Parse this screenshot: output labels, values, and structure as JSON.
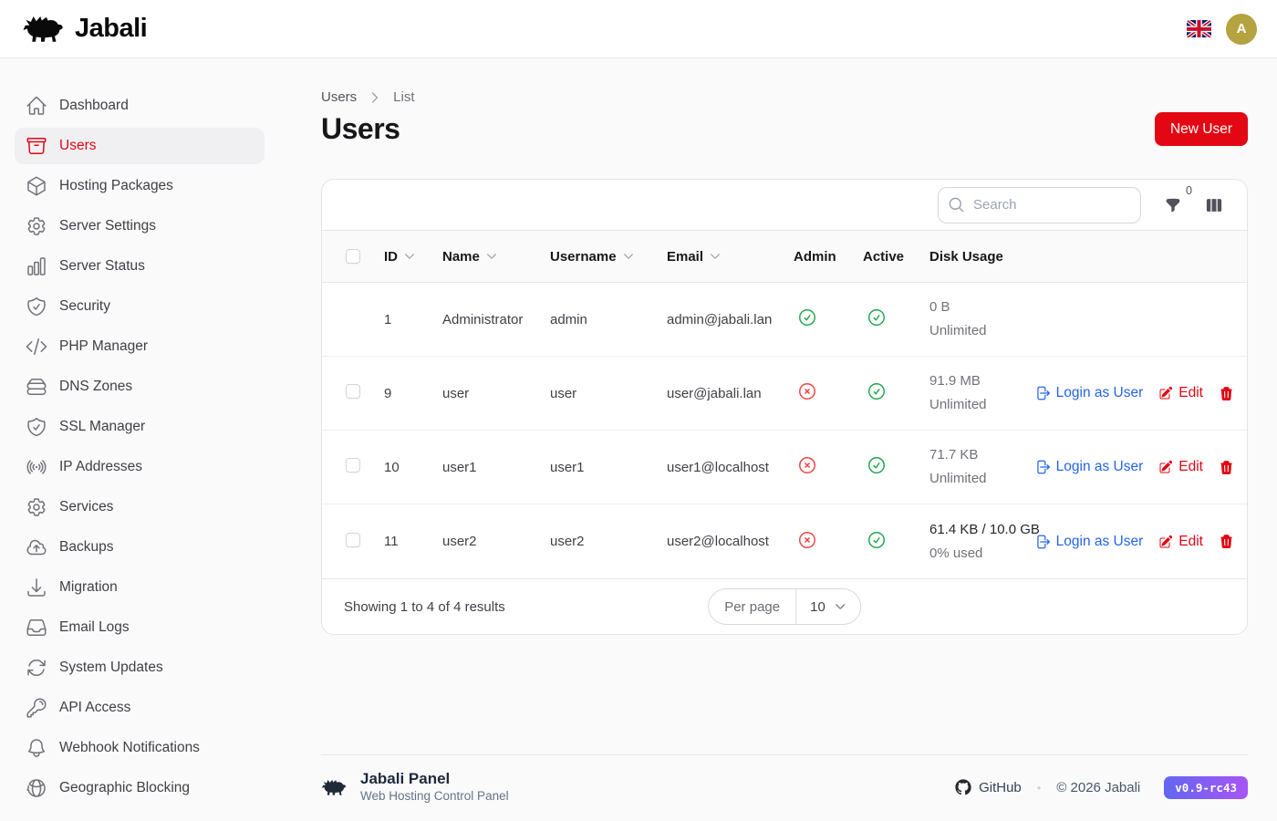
{
  "header": {
    "logo_text": "Jabali",
    "language_flag": "uk-flag",
    "avatar_initial": "A"
  },
  "sidebar": {
    "items": [
      {
        "id": "dashboard",
        "label": "Dashboard",
        "icon": "home",
        "active": false
      },
      {
        "id": "users",
        "label": "Users",
        "icon": "archive",
        "active": true
      },
      {
        "id": "hosting-packages",
        "label": "Hosting Packages",
        "icon": "cube",
        "active": false
      },
      {
        "id": "server-settings",
        "label": "Server Settings",
        "icon": "cog",
        "active": false
      },
      {
        "id": "server-status",
        "label": "Server Status",
        "icon": "chart",
        "active": false
      },
      {
        "id": "security",
        "label": "Security",
        "icon": "shield",
        "active": false
      },
      {
        "id": "php-manager",
        "label": "PHP Manager",
        "icon": "code",
        "active": false
      },
      {
        "id": "dns-zones",
        "label": "DNS Zones",
        "icon": "server",
        "active": false
      },
      {
        "id": "ssl-manager",
        "label": "SSL Manager",
        "icon": "shield",
        "active": false
      },
      {
        "id": "ip-addresses",
        "label": "IP Addresses",
        "icon": "signal",
        "active": false
      },
      {
        "id": "services",
        "label": "Services",
        "icon": "cog",
        "active": false
      },
      {
        "id": "backups",
        "label": "Backups",
        "icon": "cloud-up",
        "active": false
      },
      {
        "id": "migration",
        "label": "Migration",
        "icon": "download",
        "active": false
      },
      {
        "id": "email-logs",
        "label": "Email Logs",
        "icon": "inbox",
        "active": false
      },
      {
        "id": "system-updates",
        "label": "System Updates",
        "icon": "refresh",
        "active": false
      },
      {
        "id": "api-access",
        "label": "API Access",
        "icon": "key",
        "active": false
      },
      {
        "id": "webhook-notifications",
        "label": "Webhook Notifications",
        "icon": "bell",
        "active": false
      },
      {
        "id": "geographic-blocking",
        "label": "Geographic Blocking",
        "icon": "globe",
        "active": false
      }
    ]
  },
  "breadcrumb": {
    "parent": "Users",
    "current": "List"
  },
  "page": {
    "title": "Users",
    "new_user_button": "New User"
  },
  "table": {
    "search_placeholder": "Search",
    "filter_badge_count": "0",
    "columns": [
      {
        "label": "ID",
        "sortable": true
      },
      {
        "label": "Name",
        "sortable": true
      },
      {
        "label": "Username",
        "sortable": true
      },
      {
        "label": "Email",
        "sortable": true
      },
      {
        "label": "Admin",
        "sortable": false
      },
      {
        "label": "Active",
        "sortable": false
      },
      {
        "label": "Disk Usage",
        "sortable": false
      }
    ],
    "actions": {
      "login_as": "Login as User",
      "edit": "Edit"
    },
    "rows": [
      {
        "id": "1",
        "name": "Administrator",
        "username": "admin",
        "email": "admin@jabali.lan",
        "admin": true,
        "active": true,
        "disk_primary": "0 B",
        "disk_secondary": "Unlimited",
        "disk_primary_emphasis": false,
        "selectable": false,
        "has_actions": false
      },
      {
        "id": "9",
        "name": "user",
        "username": "user",
        "email": "user@jabali.lan",
        "admin": false,
        "active": true,
        "disk_primary": "91.9 MB",
        "disk_secondary": "Unlimited",
        "disk_primary_emphasis": false,
        "selectable": true,
        "has_actions": true
      },
      {
        "id": "10",
        "name": "user1",
        "username": "user1",
        "email": "user1@localhost",
        "admin": false,
        "active": true,
        "disk_primary": "71.7 KB",
        "disk_secondary": "Unlimited",
        "disk_primary_emphasis": false,
        "selectable": true,
        "has_actions": true
      },
      {
        "id": "11",
        "name": "user2",
        "username": "user2",
        "email": "user2@localhost",
        "admin": false,
        "active": true,
        "disk_primary": "61.4 KB / 10.0 GB",
        "disk_secondary": "0% used",
        "disk_primary_emphasis": true,
        "selectable": true,
        "has_actions": true
      }
    ],
    "pagination": {
      "summary": "Showing 1 to 4 of 4 results",
      "per_page_label": "Per page",
      "per_page_value": "10"
    }
  },
  "footer": {
    "title": "Jabali Panel",
    "subtitle": "Web Hosting Control Panel",
    "github_label": "GitHub",
    "copyright": "© 2026 Jabali",
    "version": "v0.9-rc43"
  },
  "icons": {
    "boar-logo-icon": "boar silhouette",
    "search-icon": "magnifier",
    "filter-icon": "funnel",
    "columns-icon": "view-columns",
    "sort-icon": "chevron-down",
    "breadcrumb-separator-icon": "chevron-right",
    "admin-yes-icon": "check-circle",
    "admin-no-icon": "x-circle",
    "active-yes-icon": "check-circle",
    "login-icon": "arrow-right-on-rectangle",
    "edit-icon": "pencil-square",
    "trash-icon": "trash",
    "github-icon": "github-octocat",
    "language-icon": "uk-flag"
  },
  "colors": {
    "brand_red": "#e30613",
    "link_blue": "#2563eb",
    "success_green": "#1ea64a",
    "danger_red": "#ef4444",
    "avatar_gold": "#b5a240",
    "badge_gradient_start": "#6366f1",
    "badge_gradient_end": "#a855f7"
  }
}
